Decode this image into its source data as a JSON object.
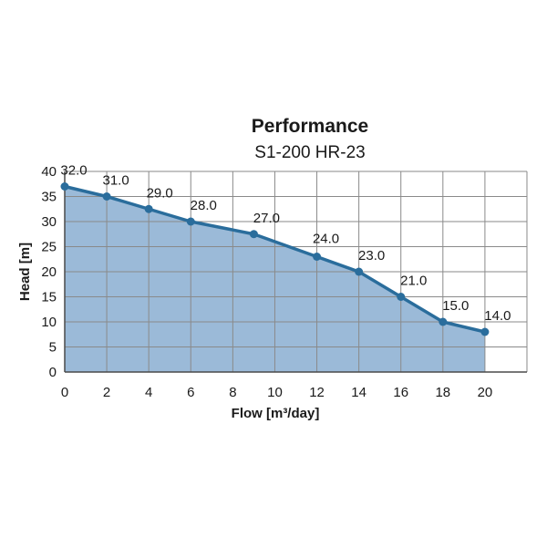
{
  "chart_data": {
    "type": "area",
    "title": "Performance",
    "subtitle": "S1-200 HR-23",
    "xlabel": "Flow [m³/day]",
    "ylabel": "Head [m]",
    "xlim": [
      0,
      22
    ],
    "ylim": [
      0,
      40
    ],
    "xticks": [
      0,
      2,
      4,
      6,
      8,
      10,
      12,
      14,
      16,
      18,
      20
    ],
    "yticks": [
      0,
      5,
      10,
      15,
      20,
      25,
      30,
      35,
      40
    ],
    "grid": true,
    "x": [
      0,
      2,
      4,
      6,
      9,
      12,
      14,
      16,
      18,
      20
    ],
    "y": [
      37,
      35,
      32.5,
      30,
      27.5,
      23,
      20,
      15,
      10,
      8
    ],
    "labels": [
      "32.0",
      "31.0",
      "29.0",
      "28.0",
      "27.0",
      "24.0",
      "23.0",
      "21.0",
      "15.0",
      "14.0"
    ],
    "colors": {
      "fill": "#9bbad8",
      "line": "#2a6d9c",
      "grid": "#8a8a8a",
      "axis": "#4a4a4a"
    }
  }
}
